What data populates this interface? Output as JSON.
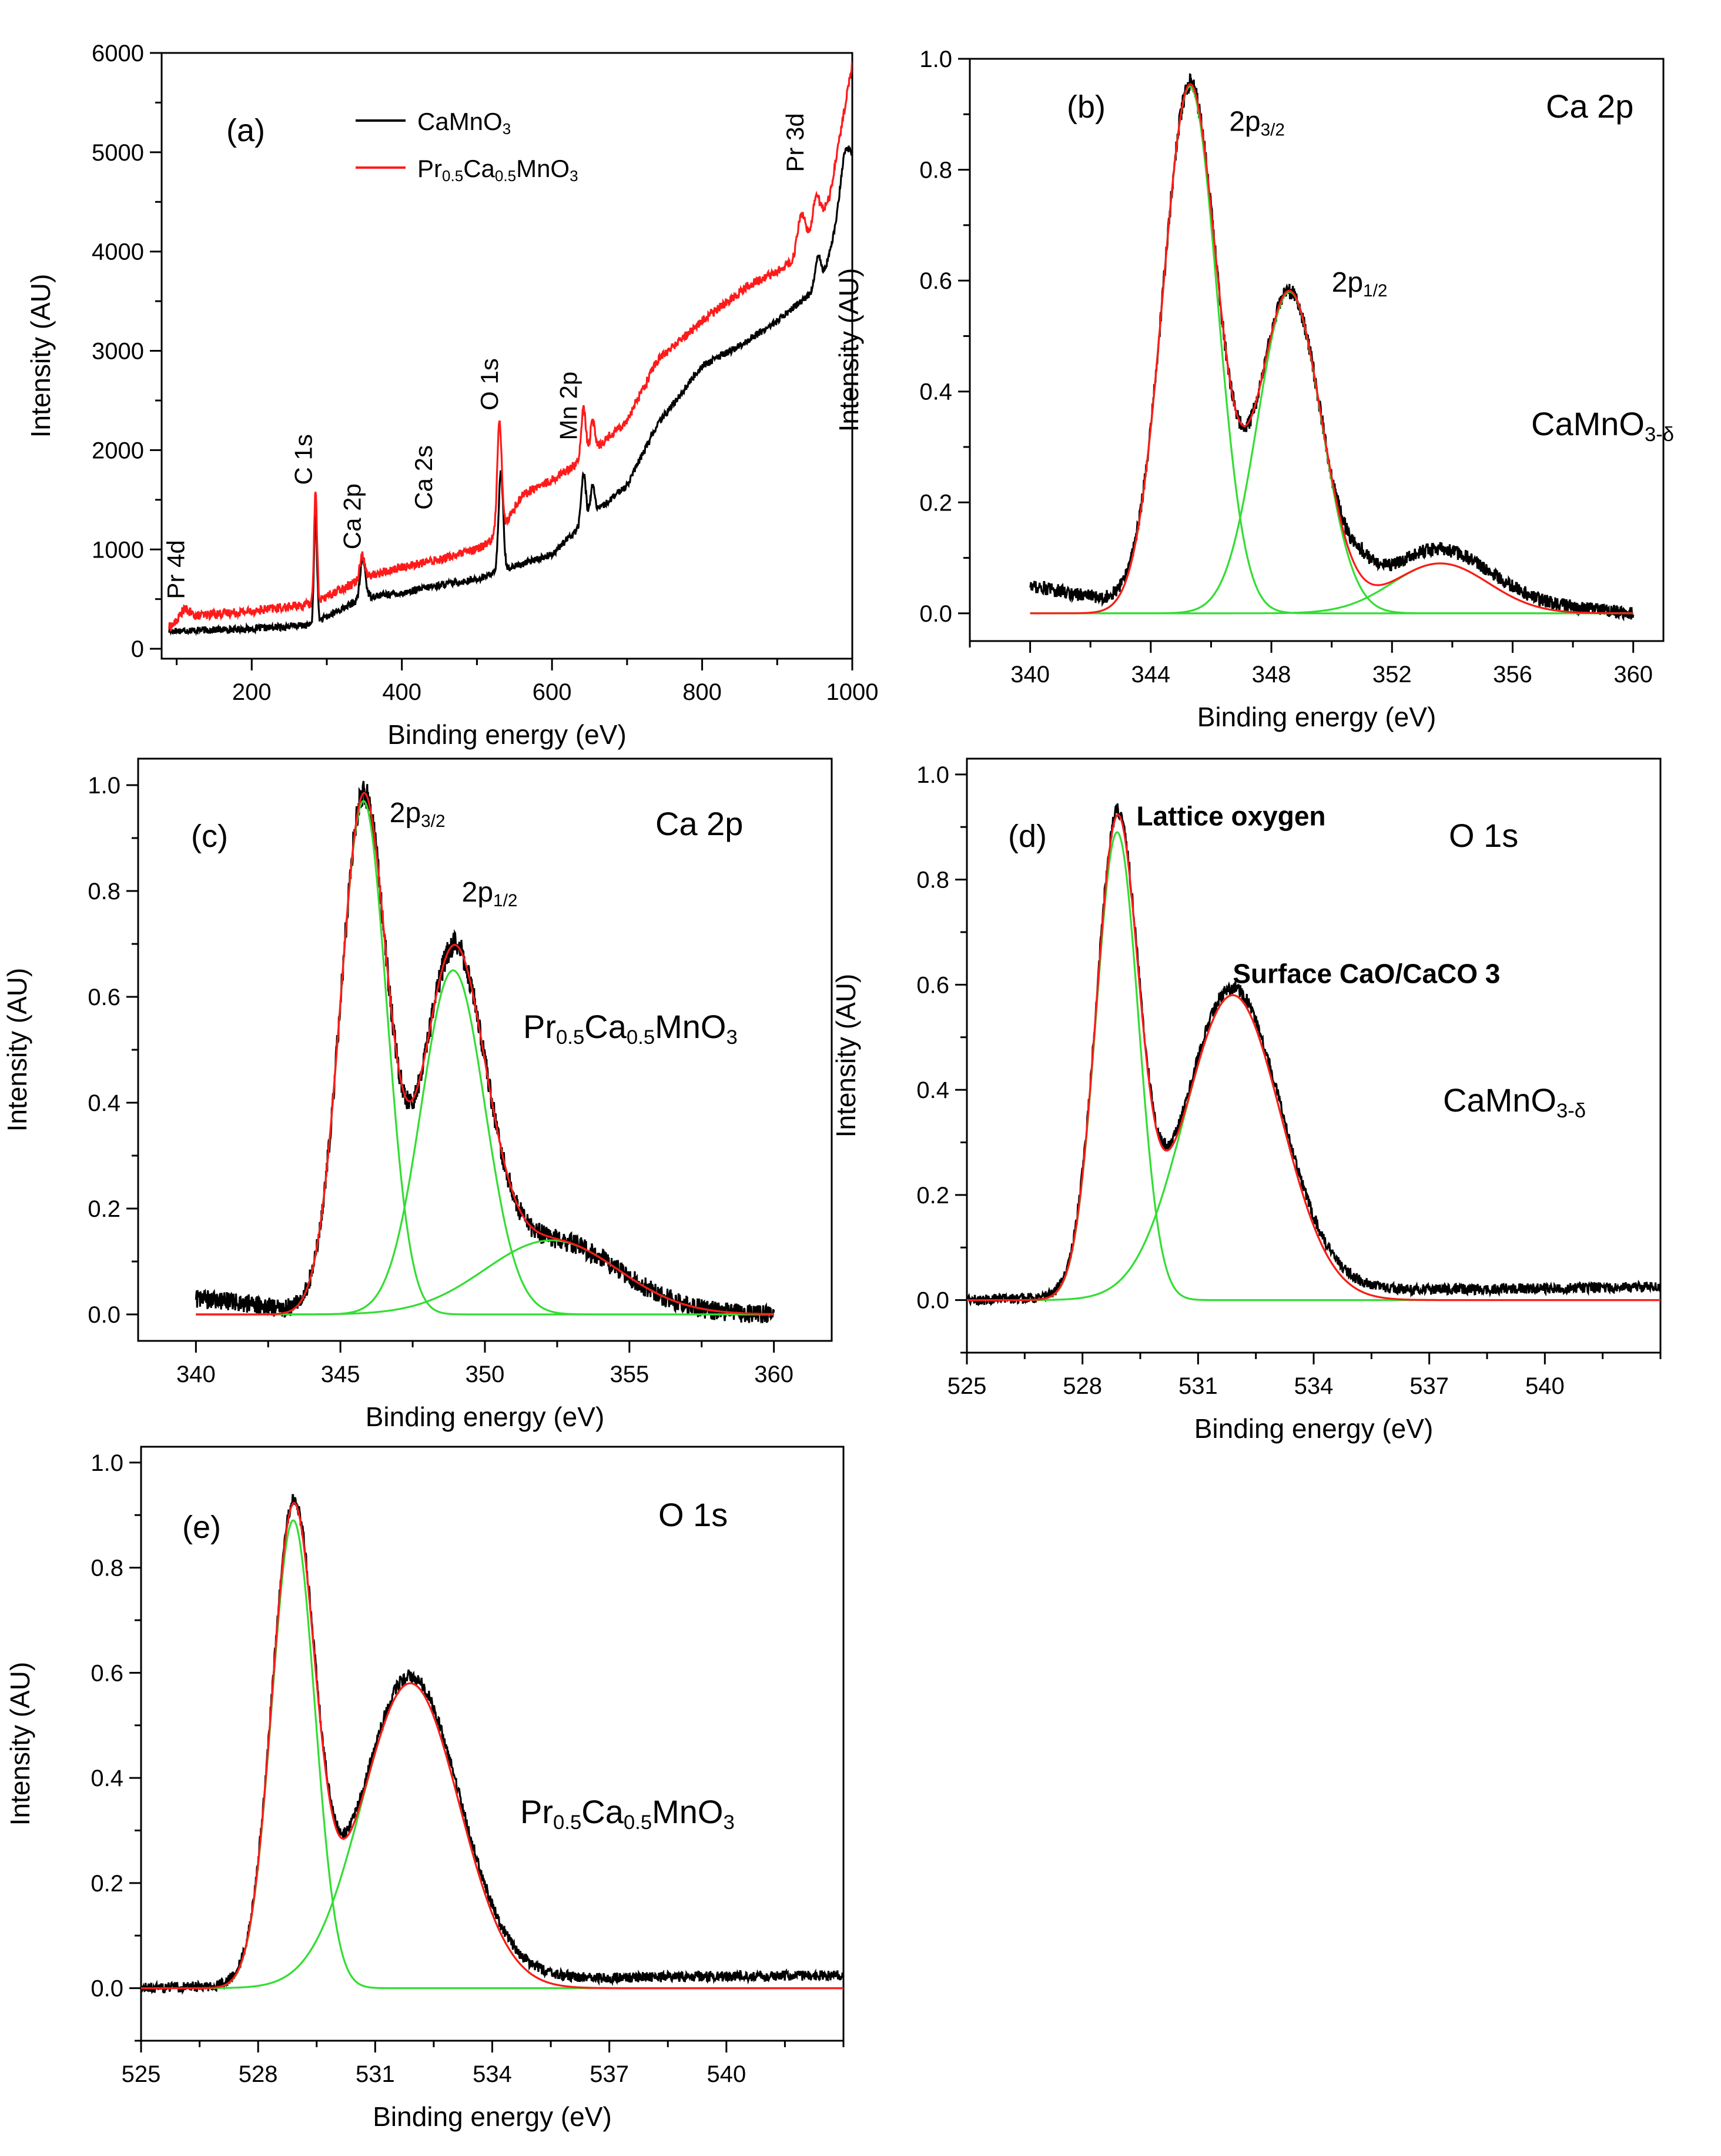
{
  "colors": {
    "black": "#000000",
    "red": "#ff1a1a",
    "green": "#33dd33"
  },
  "chart_data": [
    {
      "id": "a",
      "type": "line",
      "panel_label": "(a)",
      "xlabel": "Binding energy (eV)",
      "ylabel": "Intensity (AU)",
      "xlim": [
        80,
        1000
      ],
      "ylim": [
        -100,
        6000
      ],
      "xticks": [
        200,
        400,
        600,
        800,
        1000
      ],
      "yticks": [
        0,
        1000,
        2000,
        3000,
        4000,
        5000,
        6000
      ],
      "legend": {
        "position": "top-center",
        "entries": [
          {
            "base": "CaMnO",
            "sub": "3",
            "color": "#000000"
          },
          {
            "parts": [
              [
                "Pr",
                ""
              ],
              [
                "0.5",
                "sub"
              ],
              [
                "Ca",
                ""
              ],
              [
                "0.5",
                "sub"
              ],
              [
                "MnO",
                ""
              ],
              [
                "3",
                "sub"
              ]
            ],
            "color": "#ff1a1a"
          }
        ]
      },
      "series": [
        {
          "name": "CaMnO3",
          "color": "#000000",
          "noise": 35,
          "baseline": [
            [
              90,
              180
            ],
            [
              200,
              200
            ],
            [
              280,
              240
            ],
            [
              350,
              520
            ],
            [
              400,
              560
            ],
            [
              450,
              640
            ],
            [
              500,
              700
            ],
            [
              530,
              780
            ],
            [
              600,
              950
            ],
            [
              640,
              1250
            ],
            [
              700,
              1650
            ],
            [
              740,
              2250
            ],
            [
              800,
              2850
            ],
            [
              850,
              3050
            ],
            [
              900,
              3300
            ],
            [
              940,
              3550
            ],
            [
              960,
              3700
            ],
            [
              980,
              4300
            ],
            [
              1000,
              4900
            ]
          ],
          "peaks": [
            [
              285,
              1100,
              2
            ],
            [
              347,
              300,
              3
            ],
            [
              350,
              150,
              3
            ],
            [
              532,
              1000,
              3
            ],
            [
              642,
              500,
              3
            ],
            [
              654,
              300,
              3
            ],
            [
              955,
              300,
              4
            ],
            [
              990,
              400,
              6
            ]
          ]
        },
        {
          "name": "Pr0.5Ca0.5MnO3",
          "color": "#ff1a1a",
          "noise": 45,
          "baseline": [
            [
              90,
              220
            ],
            [
              120,
              330
            ],
            [
              200,
              380
            ],
            [
              280,
              450
            ],
            [
              350,
              720
            ],
            [
              400,
              820
            ],
            [
              450,
              900
            ],
            [
              500,
              1000
            ],
            [
              530,
              1150
            ],
            [
              560,
              1550
            ],
            [
              600,
              1700
            ],
            [
              640,
              1900
            ],
            [
              700,
              2300
            ],
            [
              740,
              2900
            ],
            [
              800,
              3300
            ],
            [
              860,
              3650
            ],
            [
              900,
              3800
            ],
            [
              930,
              3950
            ],
            [
              950,
              4250
            ],
            [
              970,
              4550
            ],
            [
              1000,
              5900
            ]
          ],
          "peaks": [
            [
              285,
              1100,
              2
            ],
            [
              347,
              250,
              3
            ],
            [
              530,
              1150,
              3
            ],
            [
              642,
              500,
              3
            ],
            [
              654,
              300,
              3
            ],
            [
              932,
              400,
              5
            ],
            [
              952,
              300,
              4
            ],
            [
              110,
              100,
              6
            ]
          ]
        }
      ],
      "annotations": [
        {
          "text": "Pr 4d",
          "x": 110,
          "y": 500,
          "rotate": true
        },
        {
          "text": "C 1s",
          "x": 280,
          "y": 1650,
          "rotate": true
        },
        {
          "text": "Ca 2p",
          "x": 345,
          "y": 1000,
          "rotate": true
        },
        {
          "text": "Ca 2s",
          "x": 440,
          "y": 1400,
          "rotate": true
        },
        {
          "text": "O 1s",
          "x": 528,
          "y": 2400,
          "rotate": true
        },
        {
          "text": "Mn 2p",
          "x": 633,
          "y": 2100,
          "rotate": true
        },
        {
          "text": "Pr 3d",
          "x": 935,
          "y": 4800,
          "rotate": true
        }
      ]
    },
    {
      "id": "b",
      "type": "line",
      "panel_label": "(b)",
      "title": "Ca 2p",
      "sample": {
        "base": "CaMnO",
        "sub": "3-δ"
      },
      "xlabel": "Binding energy (eV)",
      "ylabel": "Intensity (AU)",
      "xlim": [
        338,
        361
      ],
      "ylim": [
        -0.05,
        1.0
      ],
      "xticks": [
        340,
        344,
        348,
        352,
        356,
        360
      ],
      "yticks": [
        0.0,
        0.2,
        0.4,
        0.6,
        0.8,
        1.0
      ],
      "components": [
        [
          345.3,
          0.95,
          0.9
        ],
        [
          348.6,
          0.58,
          1.05
        ],
        [
          353.6,
          0.09,
          1.6
        ]
      ],
      "data_noise": 0.012,
      "data_range": [
        340,
        360
      ],
      "extra_bg": [
        [
          340,
          0.05
        ],
        [
          342,
          0.03
        ],
        [
          344,
          0.0
        ],
        [
          350,
          0.0
        ],
        [
          351,
          0.05
        ],
        [
          352,
          0.03
        ],
        [
          356,
          0.02
        ],
        [
          358,
          0.01
        ],
        [
          360,
          0.0
        ]
      ],
      "peak_labels": [
        {
          "base": "2p",
          "sub": "3/2",
          "x": 346.6,
          "y": 0.87
        },
        {
          "base": "2p",
          "sub": "1/2",
          "x": 350.0,
          "y": 0.58
        }
      ]
    },
    {
      "id": "c",
      "type": "line",
      "panel_label": "(c)",
      "title": "Ca 2p",
      "sample": {
        "parts": [
          [
            "Pr",
            ""
          ],
          [
            "0.5",
            "sub"
          ],
          [
            "Ca",
            ""
          ],
          [
            "0.5",
            "sub"
          ],
          [
            "MnO",
            ""
          ],
          [
            "3",
            "sub"
          ]
        ]
      },
      "xlabel": "Binding energy (eV)",
      "ylabel": "Intensity (AU)",
      "xlim": [
        338,
        362
      ],
      "ylim": [
        -0.05,
        1.05
      ],
      "xticks": [
        340,
        345,
        350,
        355,
        360
      ],
      "yticks": [
        0.0,
        0.2,
        0.4,
        0.6,
        0.8,
        1.0
      ],
      "components": [
        [
          345.8,
          0.97,
          0.8
        ],
        [
          348.9,
          0.65,
          1.1
        ],
        [
          352.3,
          0.14,
          2.3
        ]
      ],
      "data_noise": 0.018,
      "data_range": [
        340,
        360
      ],
      "extra_bg": [
        [
          340,
          0.03
        ],
        [
          342,
          0.02
        ],
        [
          344,
          0.0
        ],
        [
          360,
          0.0
        ]
      ],
      "peak_labels": [
        {
          "base": "2p",
          "sub": "3/2",
          "x": 346.7,
          "y": 0.93
        },
        {
          "base": "2p",
          "sub": "1/2",
          "x": 349.2,
          "y": 0.78
        }
      ]
    },
    {
      "id": "d",
      "type": "line",
      "title": "O 1s",
      "panel_label": "(d)",
      "sample": {
        "base": "CaMnO",
        "sub": "3-δ"
      },
      "xlabel": "Binding energy (eV)",
      "ylabel": "Intensity (AU)",
      "xlim": [
        525,
        543
      ],
      "ylim": [
        -0.1,
        1.03
      ],
      "xticks": [
        525,
        528,
        531,
        534,
        537,
        540
      ],
      "yticks": [
        0.0,
        0.2,
        0.4,
        0.6,
        0.8,
        1.0
      ],
      "components": [
        [
          528.9,
          0.89,
          0.55
        ],
        [
          531.9,
          0.58,
          1.25
        ]
      ],
      "data_noise": 0.01,
      "data_range": [
        525,
        543
      ],
      "extra_bg": [
        [
          525,
          0.0
        ],
        [
          535,
          0.02
        ],
        [
          537,
          0.02
        ],
        [
          543,
          0.025
        ]
      ],
      "bold_labels": [
        {
          "text": "Lattice oxygen",
          "x": 529.4,
          "y": 0.92
        },
        {
          "text": "Surface CaO/CaCO 3",
          "x": 531.9,
          "y": 0.62
        }
      ]
    },
    {
      "id": "e",
      "type": "line",
      "title": "O 1s",
      "panel_label": "(e)",
      "sample": {
        "parts": [
          [
            "Pr",
            ""
          ],
          [
            "0.5",
            "sub"
          ],
          [
            "Ca",
            ""
          ],
          [
            "0.5",
            "sub"
          ],
          [
            "MnO",
            ""
          ],
          [
            "3",
            "sub"
          ]
        ]
      },
      "xlabel": "Binding energy (eV)",
      "ylabel": "Intensity (AU)",
      "xlim": [
        525,
        543
      ],
      "ylim": [
        -0.1,
        1.03
      ],
      "xticks": [
        525,
        528,
        531,
        534,
        537,
        540
      ],
      "yticks": [
        0.0,
        0.2,
        0.4,
        0.6,
        0.8,
        1.0
      ],
      "components": [
        [
          528.9,
          0.89,
          0.55
        ],
        [
          531.9,
          0.58,
          1.25
        ]
      ],
      "data_noise": 0.01,
      "data_range": [
        525,
        543
      ],
      "extra_bg": [
        [
          525,
          0.0
        ],
        [
          535,
          0.02
        ],
        [
          537,
          0.02
        ],
        [
          543,
          0.025
        ]
      ]
    }
  ]
}
